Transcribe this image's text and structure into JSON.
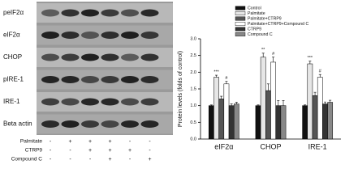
{
  "blot": {
    "labels": [
      "peIF2α",
      "eIF2α",
      "CHOP",
      "pIRE-1",
      "IRE-1",
      "Beta actin"
    ],
    "treatments": [
      {
        "name": "Palmitate",
        "signs": [
          "-",
          "+",
          "+",
          "+",
          "-",
          "-"
        ]
      },
      {
        "name": "CTRP9",
        "signs": [
          "-",
          "-",
          "+",
          "+",
          "+",
          "-"
        ]
      },
      {
        "name": "Compound C",
        "signs": [
          "-",
          "-",
          "-",
          "+",
          "-",
          "+"
        ]
      }
    ]
  },
  "chart_data": {
    "type": "bar",
    "y_label": "Protein levels (folds of control)",
    "categories": [
      "eIF2α",
      "CHOP",
      "IRE-1"
    ],
    "series": [
      {
        "name": "Control",
        "color": "#111111",
        "values": [
          1.0,
          1.0,
          1.0
        ],
        "errors": [
          0.02,
          0.02,
          0.02
        ]
      },
      {
        "name": "Palmitate",
        "color": "#e6e6e6",
        "values": [
          1.85,
          2.45,
          2.25
        ],
        "errors": [
          0.06,
          0.12,
          0.08
        ],
        "markers": [
          "***",
          "**",
          "***"
        ]
      },
      {
        "name": "Palmitate+CTRP9",
        "color": "#555555",
        "values": [
          1.2,
          1.45,
          1.3
        ],
        "errors": [
          0.08,
          0.2,
          0.1
        ]
      },
      {
        "name": "Palmitate+CTRP9+Compound C",
        "color": "#ffffff",
        "values": [
          1.65,
          2.3,
          1.85
        ],
        "errors": [
          0.08,
          0.15,
          0.08
        ],
        "markers": [
          "#",
          "#",
          "#"
        ]
      },
      {
        "name": "CTRP9",
        "color": "#333333",
        "values": [
          1.0,
          1.0,
          1.05
        ],
        "errors": [
          0.05,
          0.15,
          0.06
        ]
      },
      {
        "name": "Compound C",
        "color": "#888888",
        "values": [
          1.05,
          1.0,
          1.1
        ],
        "errors": [
          0.05,
          0.15,
          0.06
        ]
      }
    ],
    "ylim": [
      0,
      3
    ],
    "yticks": [
      {
        "value": 0,
        "label": "0.0"
      },
      0.5,
      {
        "value": 1,
        "label": "1.0"
      },
      1.5,
      {
        "value": 2,
        "label": "2.0"
      },
      2.5,
      {
        "value": 3,
        "label": "3.0"
      }
    ],
    "legend": "top-right"
  }
}
